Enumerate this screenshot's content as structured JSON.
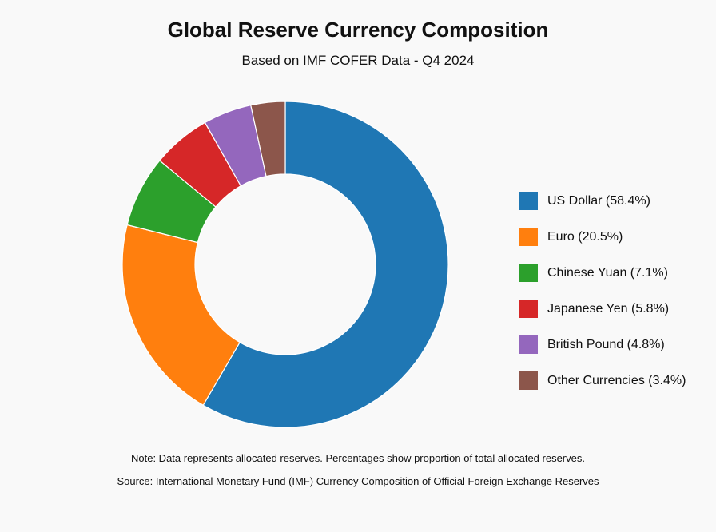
{
  "chart_data": {
    "type": "pie",
    "title": "Global Reserve Currency Composition",
    "subtitle": "Based on IMF COFER Data - Q4 2024",
    "categories": [
      "US Dollar",
      "Euro",
      "Chinese Yuan",
      "Japanese Yen",
      "British Pound",
      "Other Currencies"
    ],
    "values": [
      58.4,
      20.5,
      7.1,
      5.8,
      4.8,
      3.4
    ],
    "legend_labels": [
      "US Dollar (58.4%)",
      "Euro (20.5%)",
      "Chinese Yuan (7.1%)",
      "Japanese Yen (5.8%)",
      "British Pound (4.8%)",
      "Other Currencies (3.4%)"
    ],
    "colors": [
      "#1f77b4",
      "#ff7f0e",
      "#2ca02c",
      "#d62728",
      "#9467bd",
      "#8c564b"
    ],
    "donut": true,
    "legend_position": "right"
  },
  "footer": {
    "note": "Note: Data represents allocated reserves. Percentages show proportion of total allocated reserves.",
    "source": "Source: International Monetary Fund (IMF) Currency Composition of Official Foreign Exchange Reserves"
  }
}
